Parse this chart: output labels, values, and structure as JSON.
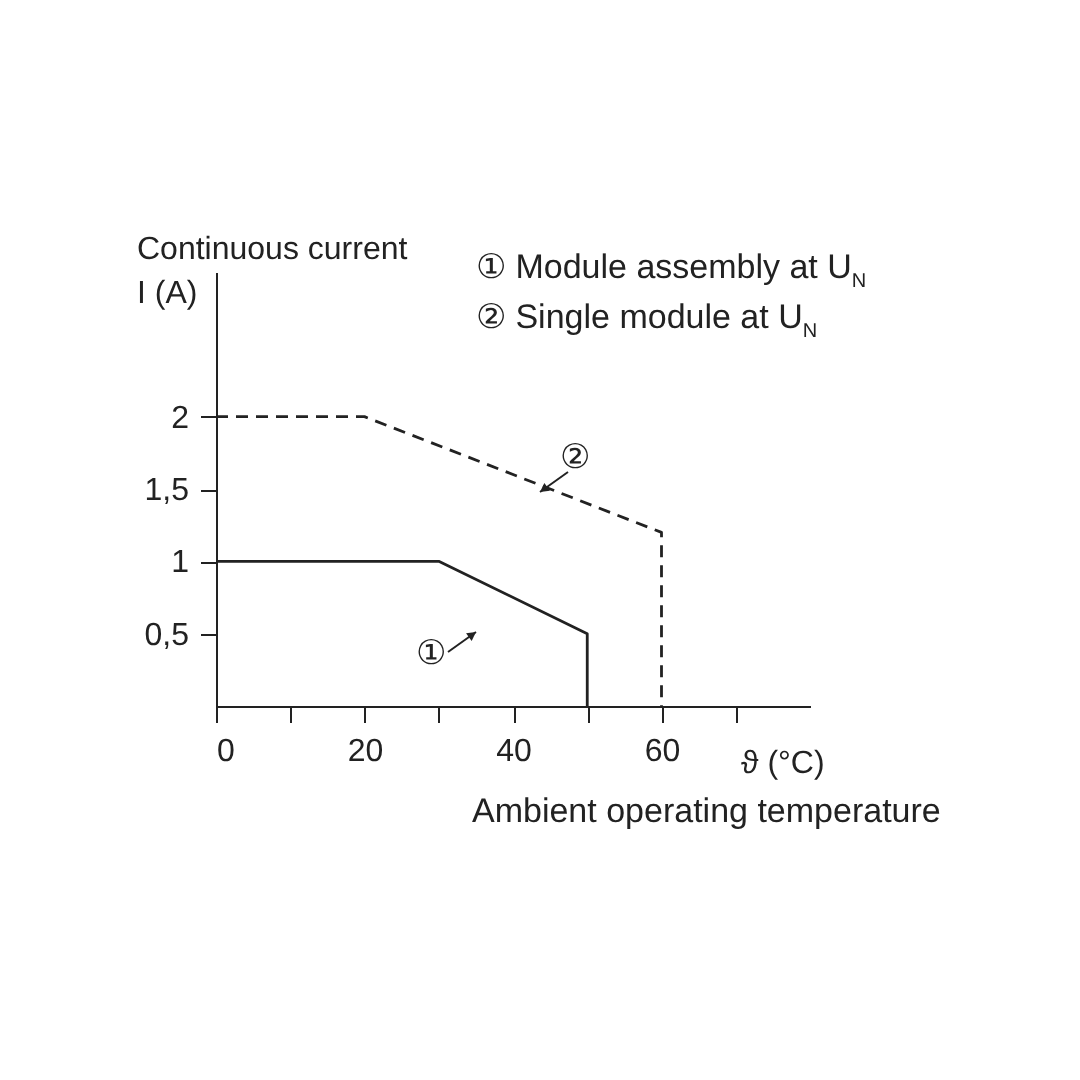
{
  "chart_data": {
    "type": "line",
    "xlabel": "ϑ (°C)",
    "ylabel": "Continuous current\nI (A)",
    "xlim": [
      0,
      80
    ],
    "ylim": [
      0,
      3
    ],
    "xticks": [
      0,
      {
        "value": 10,
        "label": null
      },
      20,
      {
        "value": 30,
        "label": null
      },
      40,
      {
        "value": 50,
        "label": null
      },
      60,
      {
        "value": 70,
        "label": null
      }
    ],
    "yticks": [
      {
        "value": 0.5,
        "label": "0,5"
      },
      1,
      {
        "value": 1.5,
        "label": "1,5"
      },
      2
    ],
    "grid": false,
    "legend": false,
    "marker": "none",
    "series": [
      {
        "color": "#222222",
        "line_style": "solid",
        "x": [
          0,
          30,
          50,
          50
        ],
        "values": [
          1,
          1,
          0.5,
          0
        ]
      },
      {
        "color": "#222222",
        "line_style": "dashed",
        "x": [
          0,
          20,
          60,
          60
        ],
        "values": [
          2,
          2,
          1.2,
          0
        ]
      }
    ],
    "annotations": [
      "① Module assembly at U$_{N}$",
      "② Single module at U$_{N}$",
      "Ambient operating temperature",
      "①",
      "②"
    ]
  }
}
